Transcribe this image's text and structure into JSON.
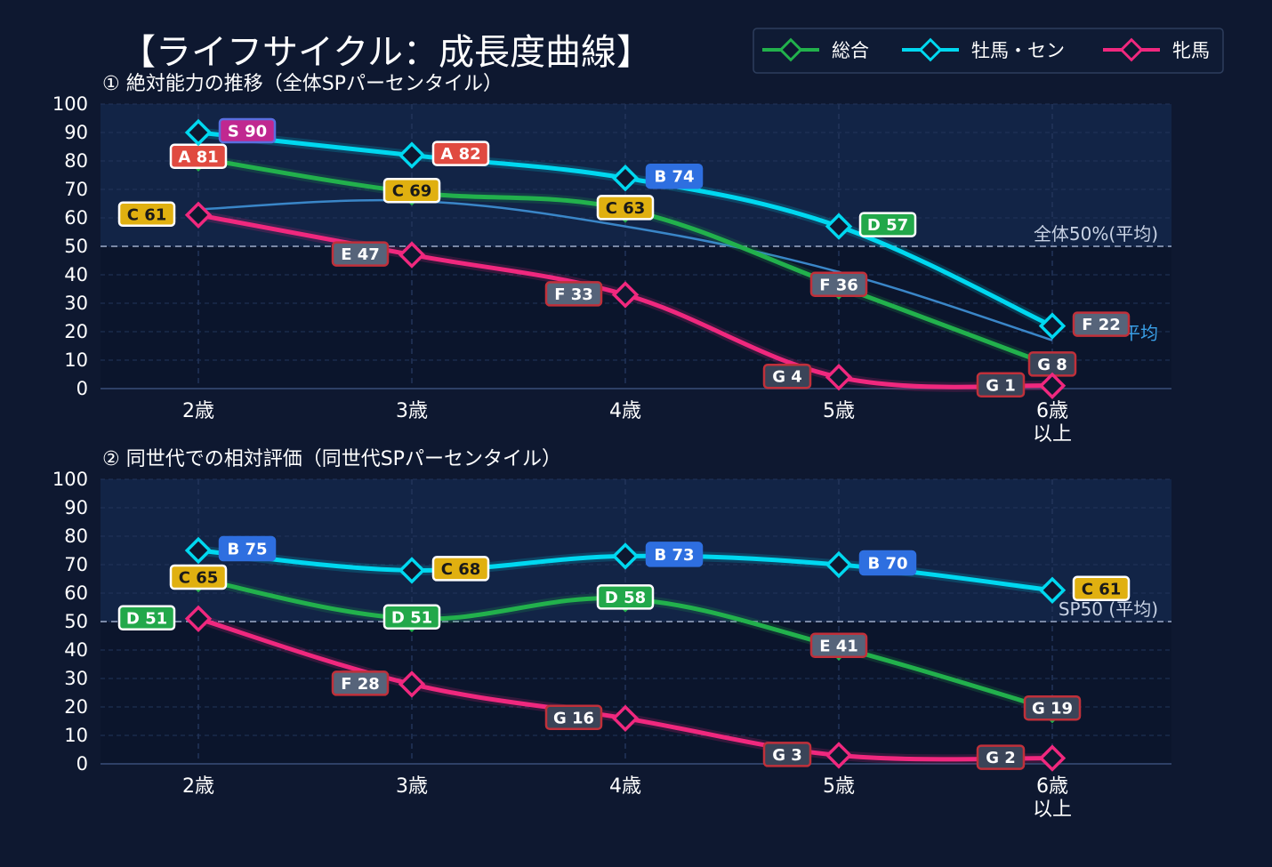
{
  "title": "【ライフサイクル：成長度曲線】",
  "legend": {
    "items": [
      {
        "name": "総合",
        "color": "#22b14c"
      },
      {
        "name": "牡馬・セン",
        "color": "#00d8f0"
      },
      {
        "name": "牝馬",
        "color": "#f0287e"
      }
    ]
  },
  "colors": {
    "background": "#0e1830",
    "grade_S": "#c02890",
    "grade_A": "#e04a40",
    "grade_B": "#2e6fe0",
    "grade_C": "#e0b010",
    "grade_D": "#22a84a",
    "grade_E": "#56647a",
    "grade_F": "#56647a",
    "grade_G": "#3a4458"
  },
  "chart_data": [
    {
      "type": "line",
      "title": "① 絶対能力の推移（全体SPパーセンタイル）",
      "categories": [
        "2歳",
        "3歳",
        "4歳",
        "5歳",
        "6歳\n以上"
      ],
      "ylim": [
        0,
        100
      ],
      "yticks": [
        0,
        10,
        20,
        30,
        40,
        50,
        60,
        70,
        80,
        90,
        100
      ],
      "grid": true,
      "legend_position": "top-right",
      "reference_line": {
        "value": 50,
        "label": "全体50%(平均)"
      },
      "reference_curve": {
        "values": [
          63,
          66,
          57,
          41,
          17
        ],
        "label": "平均"
      },
      "series": [
        {
          "name": "総合",
          "values": [
            81,
            69,
            63,
            36,
            8
          ],
          "labels": [
            "A 81",
            "C 69",
            "C 63",
            "F 36",
            "G 8"
          ]
        },
        {
          "name": "牡馬・セン",
          "values": [
            90,
            82,
            74,
            57,
            22
          ],
          "labels": [
            "S 90",
            "A 82",
            "B 74",
            "D 57",
            "F 22"
          ]
        },
        {
          "name": "牝馬",
          "values": [
            61,
            47,
            33,
            4,
            1
          ],
          "labels": [
            "C 61",
            "E 47",
            "F 33",
            "G 4",
            "G 1"
          ]
        }
      ]
    },
    {
      "type": "line",
      "title": "② 同世代での相対評価（同世代SPパーセンタイル）",
      "categories": [
        "2歳",
        "3歳",
        "4歳",
        "5歳",
        "6歳\n以上"
      ],
      "ylim": [
        0,
        100
      ],
      "yticks": [
        0,
        10,
        20,
        30,
        40,
        50,
        60,
        70,
        80,
        90,
        100
      ],
      "grid": true,
      "reference_line": {
        "value": 50,
        "label": "SP50 (平均)"
      },
      "series": [
        {
          "name": "総合",
          "values": [
            65,
            51,
            58,
            41,
            19
          ],
          "labels": [
            "C 65",
            "D 51",
            "D 58",
            "E 41",
            "G 19"
          ]
        },
        {
          "name": "牡馬・セン",
          "values": [
            75,
            68,
            73,
            70,
            61
          ],
          "labels": [
            "B 75",
            "C 68",
            "B 73",
            "B 70",
            "C 61"
          ]
        },
        {
          "name": "牝馬",
          "values": [
            51,
            28,
            16,
            3,
            2
          ],
          "labels": [
            "D 51",
            "F 28",
            "G 16",
            "G 3",
            "G 2"
          ]
        }
      ]
    }
  ]
}
